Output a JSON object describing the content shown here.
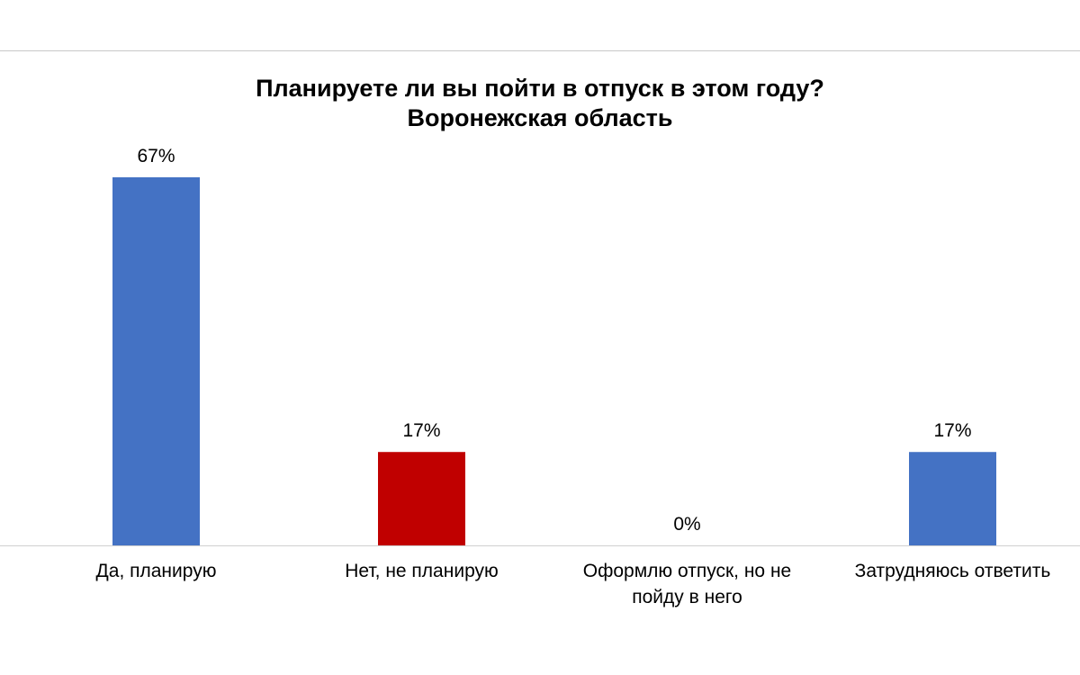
{
  "chart_data": {
    "type": "bar",
    "title_line1": "Планируете ли вы пойти в отпуск в этом году?",
    "title_line2": "Воронежская область",
    "categories": [
      [
        "Да, планирую"
      ],
      [
        "Нет, не планирую"
      ],
      [
        "Оформлю отпуск, но не",
        "пойду в него"
      ],
      [
        "Затрудняюсь ответить"
      ]
    ],
    "values": [
      67,
      17,
      0,
      17
    ],
    "value_labels": [
      "67%",
      "17%",
      "0%",
      "17%"
    ],
    "colors": [
      "#4472c4",
      "#c00000",
      "#4472c4",
      "#4472c4"
    ],
    "ylim": [
      0,
      67
    ],
    "grid": false,
    "legend": "none"
  }
}
